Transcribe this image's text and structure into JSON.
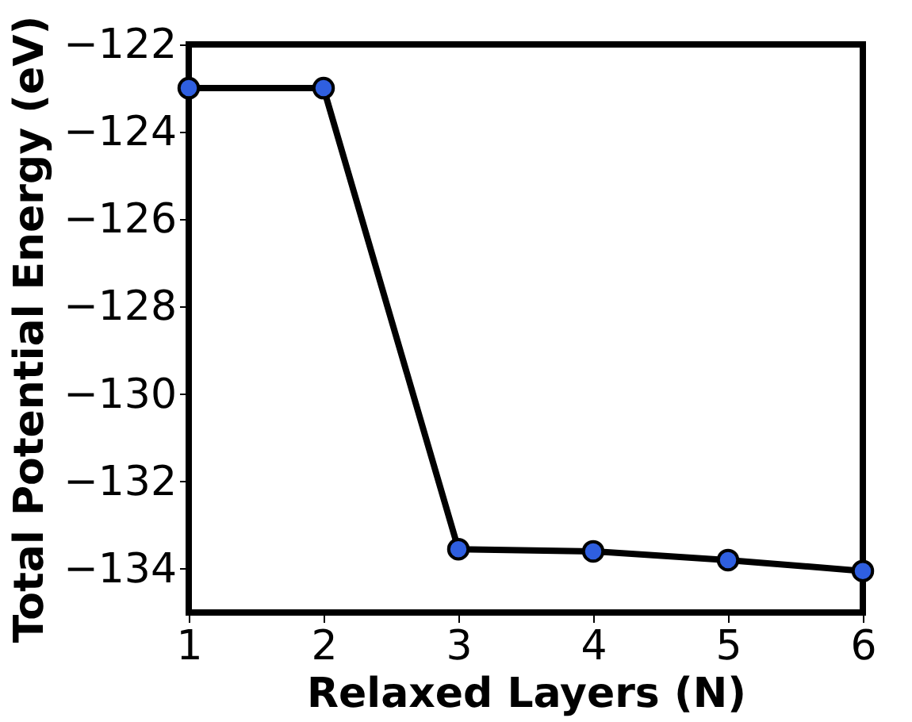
{
  "chart_data": {
    "type": "line",
    "xlabel": "Relaxed Layers (N)",
    "ylabel": "Total Potential Energy (eV)",
    "x": [
      1,
      2,
      3,
      4,
      5,
      6
    ],
    "series": [
      {
        "color": "#000000",
        "values": [
          -123.0,
          -123.0,
          -133.55,
          -133.6,
          -133.8,
          -134.05
        ]
      }
    ],
    "xlim": [
      1,
      6
    ],
    "xticks": [
      1,
      2,
      3,
      4,
      5,
      6
    ],
    "ylim": [
      -135,
      -122
    ],
    "yticks": [
      -134,
      -132,
      -130,
      -128,
      -126,
      -124,
      -122
    ],
    "marker": "circle",
    "line_style": "solid",
    "grid": false,
    "legend": false
  }
}
